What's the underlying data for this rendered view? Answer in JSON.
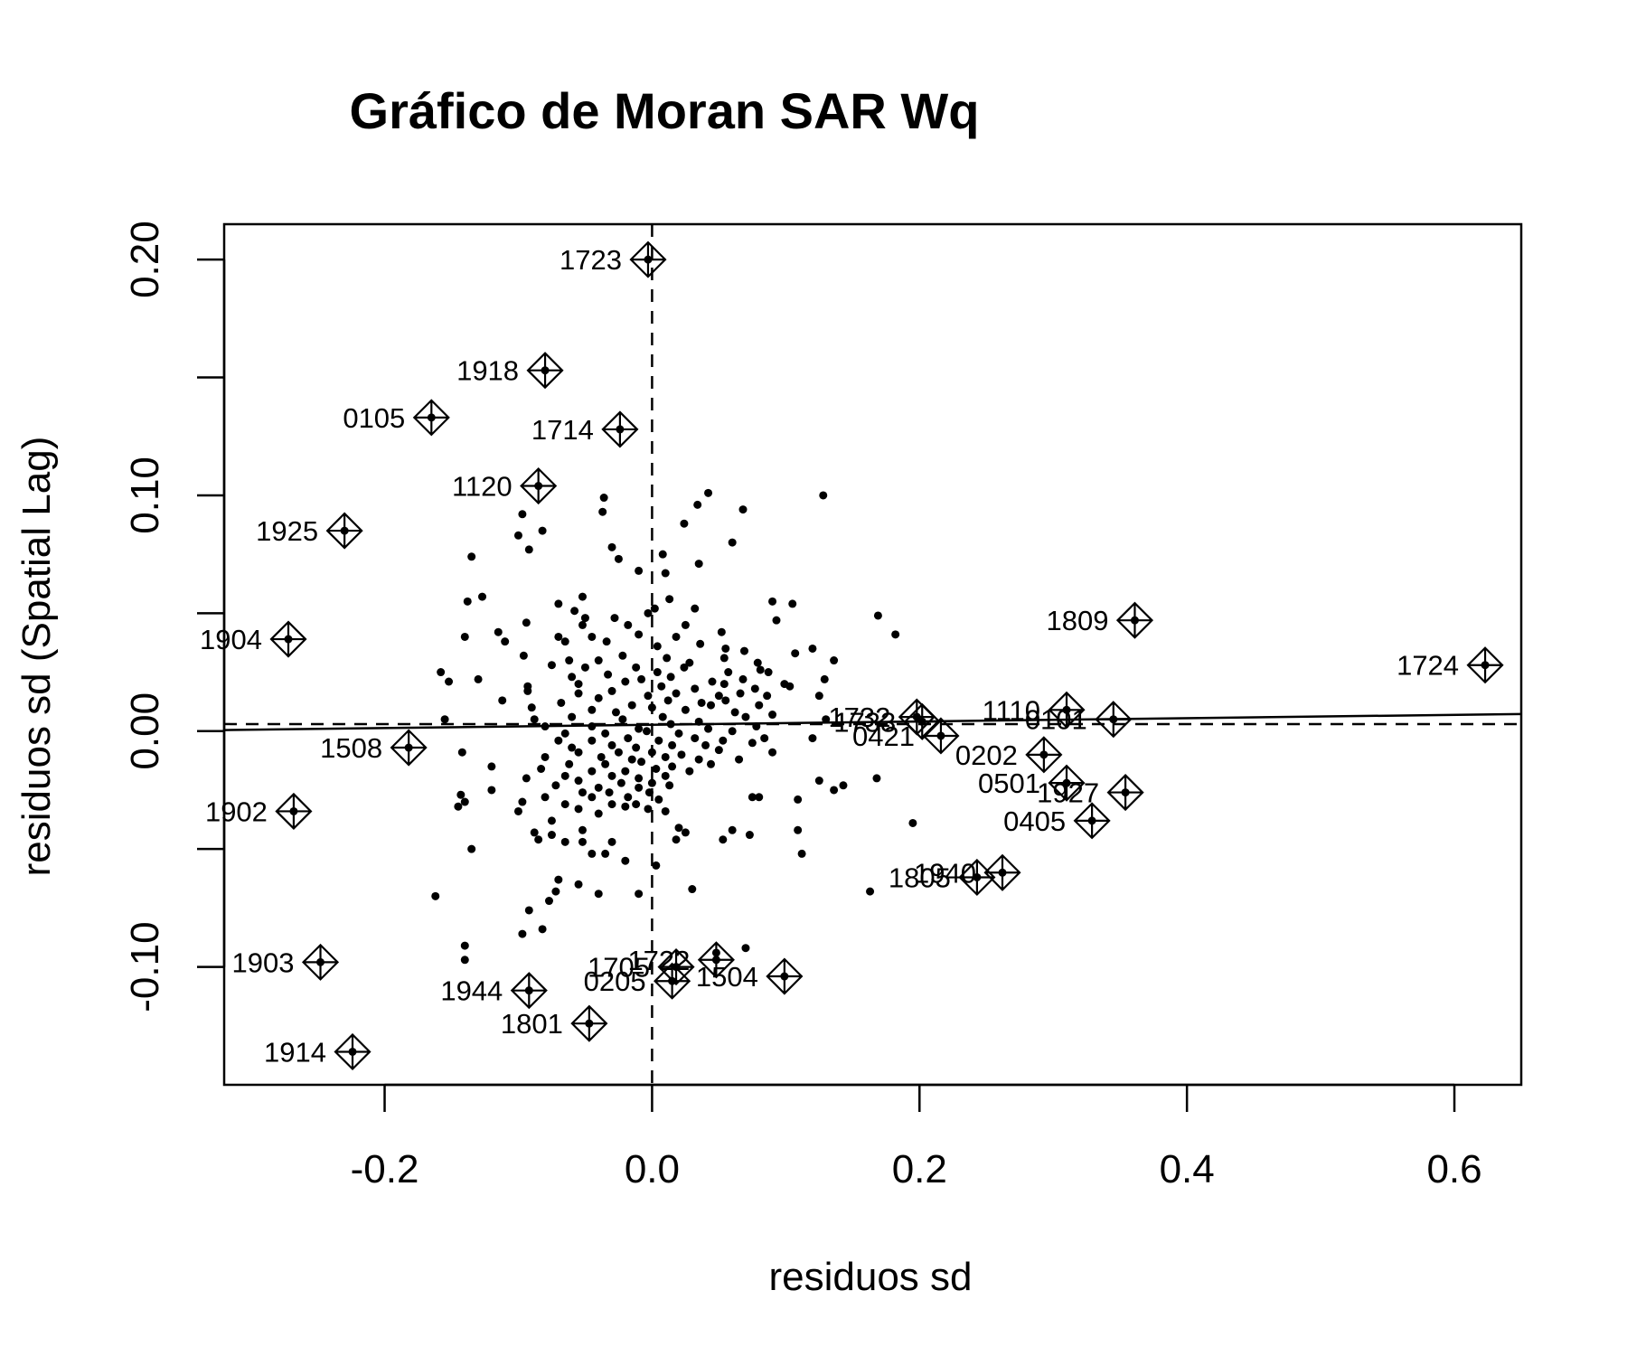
{
  "chart_data": {
    "type": "scatter",
    "title": "Gráfico de Moran SAR Wq",
    "xlabel": "residuos sd",
    "ylabel": "residuos sd (Spatial Lag)",
    "xlim": [
      -0.32,
      0.65
    ],
    "ylim": [
      -0.15,
      0.215
    ],
    "x_ticks": [
      -0.2,
      0.0,
      0.2,
      0.4,
      0.6
    ],
    "x_tick_labels": [
      "-0.2",
      "0.0",
      "0.2",
      "0.4",
      "0.6"
    ],
    "y_ticks": [
      -0.1,
      -0.05,
      0.0,
      0.05,
      0.1,
      0.15,
      0.2
    ],
    "y_tick_labels": [
      "-0.10",
      "",
      "0.00",
      "",
      "0.10",
      "",
      "0.20"
    ],
    "mean_x": 0.0,
    "mean_y": 0.003,
    "regression": {
      "intercept": 0.0027,
      "slope": 0.007
    },
    "grid": false,
    "legend": "none",
    "influential_points": [
      {
        "label": "1723",
        "x": -0.003,
        "y": 0.2
      },
      {
        "label": "1918",
        "x": -0.08,
        "y": 0.153
      },
      {
        "label": "0105",
        "x": -0.165,
        "y": 0.133
      },
      {
        "label": "1714",
        "x": -0.024,
        "y": 0.128
      },
      {
        "label": "1120",
        "x": -0.085,
        "y": 0.104
      },
      {
        "label": "1925",
        "x": -0.23,
        "y": 0.085
      },
      {
        "label": "1904",
        "x": -0.272,
        "y": 0.039
      },
      {
        "label": "1508",
        "x": -0.182,
        "y": -0.007
      },
      {
        "label": "1902",
        "x": -0.268,
        "y": -0.034
      },
      {
        "label": "1903",
        "x": -0.248,
        "y": -0.098
      },
      {
        "label": "1914",
        "x": -0.224,
        "y": -0.136
      },
      {
        "label": "1944",
        "x": -0.092,
        "y": -0.11
      },
      {
        "label": "1801",
        "x": -0.047,
        "y": -0.124
      },
      {
        "label": "1705",
        "x": 0.018,
        "y": -0.1
      },
      {
        "label": "1722",
        "x": 0.048,
        "y": -0.097
      },
      {
        "label": "0205",
        "x": 0.015,
        "y": -0.106
      },
      {
        "label": "1504",
        "x": 0.099,
        "y": -0.104
      },
      {
        "label": "1732",
        "x": 0.198,
        "y": 0.006
      },
      {
        "label": "1733",
        "x": 0.202,
        "y": 0.004
      },
      {
        "label": "0421",
        "x": 0.216,
        "y": -0.002
      },
      {
        "label": "1110",
        "x": 0.31,
        "y": 0.009
      },
      {
        "label": "0101",
        "x": 0.345,
        "y": 0.005
      },
      {
        "label": "0202",
        "x": 0.293,
        "y": -0.01
      },
      {
        "label": "0501",
        "x": 0.31,
        "y": -0.022
      },
      {
        "label": "1927",
        "x": 0.354,
        "y": -0.026
      },
      {
        "label": "0405",
        "x": 0.329,
        "y": -0.038
      },
      {
        "label": "1940",
        "x": 0.262,
        "y": -0.06
      },
      {
        "label": "1805",
        "x": 0.243,
        "y": -0.062
      },
      {
        "label": "1809",
        "x": 0.361,
        "y": 0.047
      },
      {
        "label": "1724",
        "x": 0.623,
        "y": 0.028
      }
    ],
    "points": [
      [
        -0.036,
        0.099
      ],
      [
        0.042,
        0.101
      ],
      [
        0.128,
        0.1
      ],
      [
        -0.037,
        0.093
      ],
      [
        -0.097,
        0.092
      ],
      [
        0.034,
        0.096
      ],
      [
        0.024,
        0.088
      ],
      [
        0.068,
        0.094
      ],
      [
        -0.1,
        0.083
      ],
      [
        -0.082,
        0.085
      ],
      [
        0.06,
        0.08
      ],
      [
        -0.092,
        0.077
      ],
      [
        -0.03,
        0.078
      ],
      [
        0.008,
        0.075
      ],
      [
        -0.135,
        0.074
      ],
      [
        0.035,
        0.071
      ],
      [
        -0.025,
        0.073
      ],
      [
        -0.01,
        0.068
      ],
      [
        0.01,
        0.067
      ],
      [
        -0.052,
        0.057
      ],
      [
        0.013,
        0.056
      ],
      [
        -0.138,
        0.055
      ],
      [
        -0.127,
        0.057
      ],
      [
        -0.07,
        0.054
      ],
      [
        0.09,
        0.055
      ],
      [
        0.105,
        0.054
      ],
      [
        -0.058,
        0.051
      ],
      [
        0.002,
        0.052
      ],
      [
        -0.05,
        0.048
      ],
      [
        -0.028,
        0.048
      ],
      [
        -0.003,
        0.05
      ],
      [
        0.032,
        0.052
      ],
      [
        0.169,
        0.049
      ],
      [
        -0.094,
        0.046
      ],
      [
        -0.052,
        0.045
      ],
      [
        -0.018,
        0.045
      ],
      [
        0.025,
        0.045
      ],
      [
        0.093,
        0.047
      ],
      [
        -0.01,
        0.041
      ],
      [
        0.052,
        0.042
      ],
      [
        -0.14,
        0.04
      ],
      [
        -0.115,
        0.042
      ],
      [
        -0.07,
        0.04
      ],
      [
        -0.045,
        0.04
      ],
      [
        0.018,
        0.04
      ],
      [
        0.182,
        0.041
      ],
      [
        -0.11,
        0.038
      ],
      [
        -0.065,
        0.038
      ],
      [
        -0.034,
        0.038
      ],
      [
        0.004,
        0.036
      ],
      [
        0.036,
        0.037
      ],
      [
        0.055,
        0.035
      ],
      [
        0.069,
        0.034
      ],
      [
        0.107,
        0.033
      ],
      [
        0.12,
        0.035
      ],
      [
        -0.096,
        0.032
      ],
      [
        -0.062,
        0.03
      ],
      [
        -0.04,
        0.03
      ],
      [
        -0.022,
        0.032
      ],
      [
        0.011,
        0.031
      ],
      [
        0.028,
        0.029
      ],
      [
        0.054,
        0.031
      ],
      [
        0.079,
        0.029
      ],
      [
        0.136,
        0.03
      ],
      [
        -0.075,
        0.028
      ],
      [
        -0.05,
        0.027
      ],
      [
        -0.012,
        0.027
      ],
      [
        0.004,
        0.025
      ],
      [
        0.024,
        0.027
      ],
      [
        0.057,
        0.025
      ],
      [
        0.081,
        0.026
      ],
      [
        0.087,
        0.025
      ],
      [
        -0.158,
        0.025
      ],
      [
        -0.13,
        0.022
      ],
      [
        -0.06,
        0.023
      ],
      [
        -0.033,
        0.024
      ],
      [
        -0.008,
        0.022
      ],
      [
        0.014,
        0.023
      ],
      [
        0.045,
        0.021
      ],
      [
        0.068,
        0.022
      ],
      [
        0.099,
        0.02
      ],
      [
        0.129,
        0.022
      ],
      [
        -0.152,
        0.021
      ],
      [
        -0.093,
        0.019
      ],
      [
        -0.055,
        0.02
      ],
      [
        -0.02,
        0.021
      ],
      [
        0.007,
        0.019
      ],
      [
        0.032,
        0.018
      ],
      [
        0.054,
        0.02
      ],
      [
        0.077,
        0.018
      ],
      [
        0.103,
        0.019
      ],
      [
        -0.093,
        0.017
      ],
      [
        -0.055,
        0.016
      ],
      [
        -0.03,
        0.017
      ],
      [
        -0.003,
        0.015
      ],
      [
        0.018,
        0.016
      ],
      [
        0.05,
        0.015
      ],
      [
        0.066,
        0.016
      ],
      [
        0.086,
        0.015
      ],
      [
        0.125,
        0.015
      ],
      [
        -0.112,
        0.013
      ],
      [
        -0.068,
        0.012
      ],
      [
        -0.04,
        0.014
      ],
      [
        -0.015,
        0.011
      ],
      [
        0.012,
        0.013
      ],
      [
        0.037,
        0.012
      ],
      [
        0.055,
        0.013
      ],
      [
        0.08,
        0.011
      ],
      [
        -0.09,
        0.01
      ],
      [
        -0.045,
        0.009
      ],
      [
        -0.027,
        0.008
      ],
      [
        0.0,
        0.01
      ],
      [
        0.025,
        0.009
      ],
      [
        0.044,
        0.011
      ],
      [
        0.062,
        0.008
      ],
      [
        0.09,
        0.007
      ],
      [
        -0.155,
        0.005
      ],
      [
        -0.088,
        0.005
      ],
      [
        -0.06,
        0.006
      ],
      [
        -0.022,
        0.005
      ],
      [
        0.008,
        0.006
      ],
      [
        0.035,
        0.004
      ],
      [
        0.07,
        0.006
      ],
      [
        0.13,
        0.005
      ],
      [
        -0.08,
        0.002
      ],
      [
        -0.045,
        0.002
      ],
      [
        -0.01,
        0.001
      ],
      [
        0.014,
        0.003
      ],
      [
        0.042,
        0.001
      ],
      [
        0.078,
        0.002
      ],
      [
        -0.065,
        -0.001
      ],
      [
        -0.035,
        -0.001
      ],
      [
        -0.004,
        0.0
      ],
      [
        0.02,
        -0.001
      ],
      [
        0.06,
        0.0
      ],
      [
        -0.07,
        -0.004
      ],
      [
        -0.045,
        -0.004
      ],
      [
        -0.018,
        -0.003
      ],
      [
        0.005,
        -0.004
      ],
      [
        0.032,
        -0.003
      ],
      [
        0.053,
        -0.004
      ],
      [
        0.084,
        -0.003
      ],
      [
        0.12,
        -0.003
      ],
      [
        -0.06,
        -0.007
      ],
      [
        -0.03,
        -0.006
      ],
      [
        -0.012,
        -0.007
      ],
      [
        0.015,
        -0.006
      ],
      [
        0.04,
        -0.006
      ],
      [
        0.075,
        -0.005
      ],
      [
        -0.055,
        -0.009
      ],
      [
        -0.025,
        -0.009
      ],
      [
        0.0,
        -0.009
      ],
      [
        0.022,
        -0.01
      ],
      [
        0.05,
        -0.008
      ],
      [
        0.09,
        -0.009
      ],
      [
        -0.142,
        -0.009
      ],
      [
        -0.08,
        -0.011
      ],
      [
        -0.038,
        -0.011
      ],
      [
        -0.015,
        -0.012
      ],
      [
        0.01,
        -0.011
      ],
      [
        0.035,
        -0.012
      ],
      [
        0.065,
        -0.012
      ],
      [
        -0.062,
        -0.014
      ],
      [
        -0.035,
        -0.014
      ],
      [
        -0.008,
        -0.013
      ],
      [
        0.015,
        -0.015
      ],
      [
        0.044,
        -0.014
      ],
      [
        -0.12,
        -0.015
      ],
      [
        -0.083,
        -0.016
      ],
      [
        -0.045,
        -0.017
      ],
      [
        -0.02,
        -0.017
      ],
      [
        0.003,
        -0.016
      ],
      [
        0.028,
        -0.017
      ],
      [
        -0.065,
        -0.019
      ],
      [
        -0.03,
        -0.019
      ],
      [
        -0.01,
        -0.02
      ],
      [
        0.01,
        -0.019
      ],
      [
        0.168,
        -0.02
      ],
      [
        -0.094,
        -0.02
      ],
      [
        -0.055,
        -0.021
      ],
      [
        -0.023,
        -0.022
      ],
      [
        0.0,
        -0.022
      ],
      [
        0.125,
        -0.021
      ],
      [
        0.143,
        -0.023
      ],
      [
        -0.072,
        -0.023
      ],
      [
        -0.04,
        -0.024
      ],
      [
        -0.01,
        -0.024
      ],
      [
        0.013,
        -0.023
      ],
      [
        0.136,
        -0.025
      ],
      [
        -0.12,
        -0.025
      ],
      [
        -0.052,
        -0.026
      ],
      [
        -0.032,
        -0.026
      ],
      [
        -0.002,
        -0.026
      ],
      [
        -0.143,
        -0.027
      ],
      [
        -0.08,
        -0.028
      ],
      [
        -0.045,
        -0.028
      ],
      [
        -0.018,
        -0.028
      ],
      [
        0.005,
        -0.029
      ],
      [
        0.075,
        -0.028
      ],
      [
        0.08,
        -0.028
      ],
      [
        0.109,
        -0.029
      ],
      [
        -0.14,
        -0.03
      ],
      [
        -0.097,
        -0.03
      ],
      [
        -0.065,
        -0.031
      ],
      [
        -0.03,
        -0.031
      ],
      [
        -0.012,
        -0.031
      ],
      [
        -0.145,
        -0.032
      ],
      [
        -0.055,
        -0.033
      ],
      [
        -0.02,
        -0.032
      ],
      [
        -0.003,
        -0.033
      ],
      [
        -0.1,
        -0.034
      ],
      [
        -0.04,
        -0.035
      ],
      [
        0.01,
        -0.034
      ],
      [
        0.195,
        -0.039
      ],
      [
        -0.075,
        -0.038
      ],
      [
        0.109,
        -0.042
      ],
      [
        -0.088,
        -0.043
      ],
      [
        -0.052,
        -0.042
      ],
      [
        0.02,
        -0.041
      ],
      [
        0.025,
        -0.043
      ],
      [
        0.06,
        -0.042
      ],
      [
        -0.075,
        -0.044
      ],
      [
        0.073,
        -0.044
      ],
      [
        -0.085,
        -0.046
      ],
      [
        -0.052,
        -0.047
      ],
      [
        0.018,
        -0.046
      ],
      [
        0.053,
        -0.046
      ],
      [
        -0.065,
        -0.047
      ],
      [
        -0.03,
        -0.047
      ],
      [
        -0.135,
        -0.05
      ],
      [
        -0.045,
        -0.052
      ],
      [
        -0.035,
        -0.052
      ],
      [
        0.112,
        -0.052
      ],
      [
        -0.02,
        -0.055
      ],
      [
        0.003,
        -0.057
      ],
      [
        -0.07,
        -0.063
      ],
      [
        -0.055,
        -0.065
      ],
      [
        0.03,
        -0.067
      ],
      [
        -0.072,
        -0.068
      ],
      [
        -0.162,
        -0.07
      ],
      [
        -0.04,
        -0.069
      ],
      [
        -0.01,
        -0.069
      ],
      [
        0.163,
        -0.068
      ],
      [
        -0.077,
        -0.072
      ],
      [
        -0.092,
        -0.076
      ],
      [
        -0.082,
        -0.084
      ],
      [
        -0.097,
        -0.086
      ],
      [
        -0.14,
        -0.091
      ],
      [
        0.07,
        -0.092
      ],
      [
        -0.14,
        -0.097
      ],
      [
        0.048,
        -0.094
      ]
    ]
  }
}
